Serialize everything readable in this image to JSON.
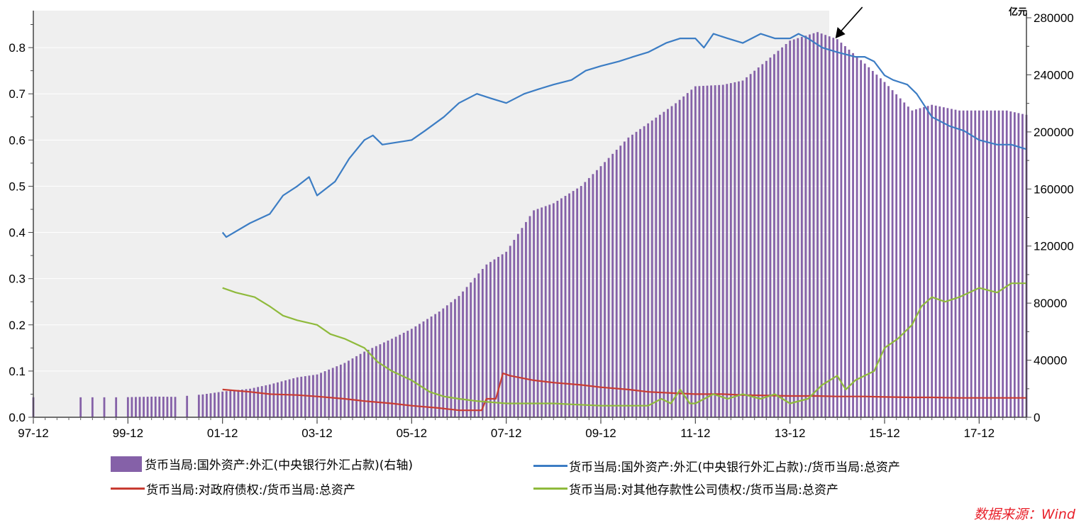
{
  "chart_data": {
    "type": "bar+line",
    "right_axis_unit": "亿元",
    "x_tick_labels": [
      "97-12",
      "99-12",
      "01-12",
      "03-12",
      "05-12",
      "07-12",
      "09-12",
      "11-12",
      "13-12",
      "15-12",
      "17-12"
    ],
    "x_range": [
      1997.92,
      2018.92
    ],
    "left_ylim": [
      0,
      0.88
    ],
    "left_ticks": [
      "0.0",
      "0.1",
      "0.2",
      "0.3",
      "0.4",
      "0.5",
      "0.6",
      "0.7",
      "0.8"
    ],
    "right_ylim": [
      0,
      285000
    ],
    "right_ticks": [
      "0",
      "40000",
      "80000",
      "120000",
      "160000",
      "200000",
      "240000",
      "280000"
    ],
    "shaded_region": [
      1997.92,
      2014.75
    ],
    "arrow_annotation_at": 2015.0,
    "bar_series": {
      "name": "货币当局:国外资产:外汇(中央银行外汇占款)(右轴)",
      "color": "#8561a8",
      "points": [
        [
          1997.92,
          14000
        ],
        [
          1998.92,
          14000
        ],
        [
          1999.17,
          14000
        ],
        [
          1999.42,
          14000
        ],
        [
          1999.67,
          14000
        ],
        [
          1999.92,
          14100
        ],
        [
          2000.5,
          14500
        ],
        [
          2000.92,
          14300
        ],
        [
          2001.5,
          16000
        ],
        [
          2001.92,
          18000
        ],
        [
          2002.5,
          20000
        ],
        [
          2002.92,
          23000
        ],
        [
          2003.5,
          28000
        ],
        [
          2003.92,
          30000
        ],
        [
          2004.5,
          38000
        ],
        [
          2004.92,
          46000
        ],
        [
          2005.5,
          55000
        ],
        [
          2005.92,
          62000
        ],
        [
          2006.5,
          74000
        ],
        [
          2006.92,
          85000
        ],
        [
          2007.5,
          107000
        ],
        [
          2007.92,
          116000
        ],
        [
          2008.5,
          145000
        ],
        [
          2008.92,
          150000
        ],
        [
          2009.5,
          162000
        ],
        [
          2009.92,
          176000
        ],
        [
          2010.5,
          196000
        ],
        [
          2010.92,
          206000
        ],
        [
          2011.5,
          220000
        ],
        [
          2011.92,
          232000
        ],
        [
          2012.5,
          233000
        ],
        [
          2012.92,
          236000
        ],
        [
          2013.5,
          252000
        ],
        [
          2013.92,
          264000
        ],
        [
          2014.5,
          270000
        ],
        [
          2014.92,
          265000
        ],
        [
          2015.5,
          248000
        ],
        [
          2015.92,
          235000
        ],
        [
          2016.5,
          215000
        ],
        [
          2016.92,
          219000
        ],
        [
          2017.5,
          215000
        ],
        [
          2017.92,
          215000
        ],
        [
          2018.5,
          215000
        ],
        [
          2018.92,
          212000
        ]
      ]
    },
    "line_series": [
      {
        "name": "货币当局:国外资产:外汇(中央银行外汇占款):/货币当局:总资产",
        "color": "#3c7dc4",
        "points": [
          [
            2001.92,
            0.4
          ],
          [
            2002.0,
            0.39
          ],
          [
            2002.5,
            0.42
          ],
          [
            2002.92,
            0.44
          ],
          [
            2003.2,
            0.48
          ],
          [
            2003.5,
            0.5
          ],
          [
            2003.75,
            0.52
          ],
          [
            2003.92,
            0.48
          ],
          [
            2004.3,
            0.51
          ],
          [
            2004.6,
            0.56
          ],
          [
            2004.92,
            0.6
          ],
          [
            2005.1,
            0.61
          ],
          [
            2005.3,
            0.59
          ],
          [
            2005.92,
            0.6
          ],
          [
            2006.2,
            0.62
          ],
          [
            2006.6,
            0.65
          ],
          [
            2006.92,
            0.68
          ],
          [
            2007.3,
            0.7
          ],
          [
            2007.6,
            0.69
          ],
          [
            2007.92,
            0.68
          ],
          [
            2008.3,
            0.7
          ],
          [
            2008.6,
            0.71
          ],
          [
            2008.92,
            0.72
          ],
          [
            2009.3,
            0.73
          ],
          [
            2009.6,
            0.75
          ],
          [
            2009.92,
            0.76
          ],
          [
            2010.3,
            0.77
          ],
          [
            2010.6,
            0.78
          ],
          [
            2010.92,
            0.79
          ],
          [
            2011.3,
            0.81
          ],
          [
            2011.6,
            0.82
          ],
          [
            2011.92,
            0.82
          ],
          [
            2012.1,
            0.8
          ],
          [
            2012.3,
            0.83
          ],
          [
            2012.6,
            0.82
          ],
          [
            2012.92,
            0.81
          ],
          [
            2013.3,
            0.83
          ],
          [
            2013.6,
            0.82
          ],
          [
            2013.92,
            0.82
          ],
          [
            2014.1,
            0.83
          ],
          [
            2014.3,
            0.82
          ],
          [
            2014.6,
            0.8
          ],
          [
            2014.92,
            0.79
          ],
          [
            2015.3,
            0.78
          ],
          [
            2015.5,
            0.78
          ],
          [
            2015.7,
            0.77
          ],
          [
            2015.92,
            0.74
          ],
          [
            2016.1,
            0.73
          ],
          [
            2016.4,
            0.72
          ],
          [
            2016.6,
            0.7
          ],
          [
            2016.92,
            0.65
          ],
          [
            2017.3,
            0.63
          ],
          [
            2017.6,
            0.62
          ],
          [
            2017.92,
            0.6
          ],
          [
            2018.3,
            0.59
          ],
          [
            2018.6,
            0.59
          ],
          [
            2018.92,
            0.58
          ]
        ]
      },
      {
        "name": "货币当局:对政府债权:/货币当局:总资产",
        "color": "#c83c32",
        "points": [
          [
            2001.92,
            0.06
          ],
          [
            2002.5,
            0.055
          ],
          [
            2002.92,
            0.05
          ],
          [
            2003.5,
            0.048
          ],
          [
            2003.92,
            0.045
          ],
          [
            2004.5,
            0.04
          ],
          [
            2004.92,
            0.035
          ],
          [
            2005.5,
            0.03
          ],
          [
            2005.92,
            0.025
          ],
          [
            2006.5,
            0.02
          ],
          [
            2006.92,
            0.015
          ],
          [
            2007.4,
            0.015
          ],
          [
            2007.5,
            0.04
          ],
          [
            2007.7,
            0.04
          ],
          [
            2007.85,
            0.095
          ],
          [
            2008.0,
            0.09
          ],
          [
            2008.5,
            0.08
          ],
          [
            2008.92,
            0.075
          ],
          [
            2009.5,
            0.07
          ],
          [
            2009.92,
            0.065
          ],
          [
            2010.5,
            0.06
          ],
          [
            2010.92,
            0.055
          ],
          [
            2011.5,
            0.052
          ],
          [
            2011.92,
            0.05
          ],
          [
            2012.5,
            0.05
          ],
          [
            2012.92,
            0.048
          ],
          [
            2013.5,
            0.047
          ],
          [
            2013.92,
            0.046
          ],
          [
            2014.5,
            0.046
          ],
          [
            2014.92,
            0.045
          ],
          [
            2015.5,
            0.045
          ],
          [
            2015.92,
            0.044
          ],
          [
            2016.5,
            0.043
          ],
          [
            2016.92,
            0.043
          ],
          [
            2017.5,
            0.042
          ],
          [
            2017.92,
            0.042
          ],
          [
            2018.5,
            0.042
          ],
          [
            2018.92,
            0.042
          ]
        ]
      },
      {
        "name": "货币当局:对其他存款性公司债权:/货币当局:总资产",
        "color": "#8fba3c",
        "points": [
          [
            2001.92,
            0.28
          ],
          [
            2002.2,
            0.27
          ],
          [
            2002.6,
            0.26
          ],
          [
            2002.92,
            0.24
          ],
          [
            2003.2,
            0.22
          ],
          [
            2003.5,
            0.21
          ],
          [
            2003.92,
            0.2
          ],
          [
            2004.2,
            0.18
          ],
          [
            2004.5,
            0.17
          ],
          [
            2004.92,
            0.15
          ],
          [
            2005.2,
            0.12
          ],
          [
            2005.5,
            0.1
          ],
          [
            2005.92,
            0.08
          ],
          [
            2006.3,
            0.055
          ],
          [
            2006.6,
            0.045
          ],
          [
            2006.92,
            0.04
          ],
          [
            2007.3,
            0.035
          ],
          [
            2007.92,
            0.03
          ],
          [
            2008.5,
            0.03
          ],
          [
            2008.92,
            0.03
          ],
          [
            2009.3,
            0.028
          ],
          [
            2009.92,
            0.025
          ],
          [
            2010.5,
            0.025
          ],
          [
            2010.92,
            0.025
          ],
          [
            2011.2,
            0.04
          ],
          [
            2011.4,
            0.03
          ],
          [
            2011.6,
            0.06
          ],
          [
            2011.8,
            0.03
          ],
          [
            2011.92,
            0.03
          ],
          [
            2012.3,
            0.05
          ],
          [
            2012.6,
            0.04
          ],
          [
            2012.92,
            0.05
          ],
          [
            2013.3,
            0.04
          ],
          [
            2013.6,
            0.05
          ],
          [
            2013.92,
            0.03
          ],
          [
            2014.3,
            0.04
          ],
          [
            2014.6,
            0.07
          ],
          [
            2014.92,
            0.09
          ],
          [
            2015.1,
            0.06
          ],
          [
            2015.3,
            0.08
          ],
          [
            2015.5,
            0.09
          ],
          [
            2015.7,
            0.1
          ],
          [
            2015.92,
            0.15
          ],
          [
            2016.2,
            0.17
          ],
          [
            2016.5,
            0.2
          ],
          [
            2016.7,
            0.24
          ],
          [
            2016.92,
            0.26
          ],
          [
            2017.2,
            0.25
          ],
          [
            2017.5,
            0.26
          ],
          [
            2017.92,
            0.28
          ],
          [
            2018.3,
            0.27
          ],
          [
            2018.6,
            0.29
          ],
          [
            2018.92,
            0.29
          ]
        ]
      }
    ],
    "legend": [
      {
        "kind": "bar",
        "label": "货币当局:国外资产:外汇(中央银行外汇占款)(右轴)",
        "color": "#8561a8"
      },
      {
        "kind": "line",
        "label": "货币当局:国外资产:外汇(中央银行外汇占款):/货币当局:总资产",
        "color": "#3c7dc4"
      },
      {
        "kind": "line",
        "label": "货币当局:对政府债权:/货币当局:总资产",
        "color": "#c83c32"
      },
      {
        "kind": "line",
        "label": "货币当局:对其他存款性公司债权:/货币当局:总资产",
        "color": "#8fba3c"
      }
    ],
    "source": "数据来源：Wind"
  }
}
